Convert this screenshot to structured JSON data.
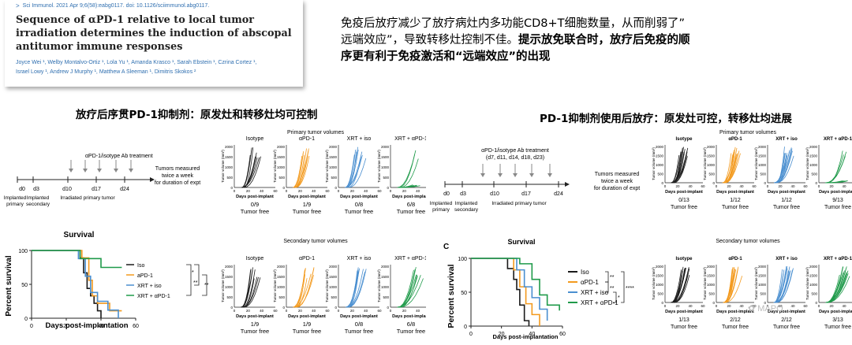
{
  "paper": {
    "journal": "Sci Immunol. 2021 Apr 9;6(58):eabg0117.  doi: 10.1126/sciimmunol.abg0117.",
    "title": "Sequence of αPD-1 relative to local tumor irradiation determines the induction of abscopal antitumor immune responses",
    "authors_line1": "Joyce Wei ¹, Welby Montalvo-Ortiz ¹, Lola Yu ¹, Amanda Krasco ¹, Sarah Ebstein ¹, Czrina Cortez ¹,",
    "authors_line2": "Israel Lowy ¹, Andrew J Murphy ¹, Matthew A Sleeman ¹, Dimitris Skokos ²"
  },
  "notes": {
    "line1": "免疫后放疗减少了放疗病灶内多功能CD8+T细胞数量，从而削弱了”",
    "line2_normal": "远端效应”，导致转移灶控制不佳。",
    "line2_bold": "提示放免联合时，放疗后免疫的顺",
    "line3_bold": "序更有利于免疫激活和“远端效应”的出现"
  },
  "left_section": {
    "heading": "放疗后序贯PD-1抑制剂：原发灶和转移灶均可控制",
    "timeline": {
      "ab_label": "αPD-1/isotype Ab treatment",
      "days": [
        "d0",
        "d3",
        "d10",
        "d17",
        "d24"
      ],
      "under_labels": [
        "Implanted primary",
        "Implanted secondary",
        "Irradiated primary tumor"
      ],
      "measure_note": [
        "Tumors measured",
        "twice a week",
        "for duration of expt"
      ]
    },
    "survival": {
      "title": "Survival",
      "ylabel": "Percent survival",
      "xlabel": "Days post-implantation",
      "legend": [
        "Iso",
        "aPD-1",
        "XRT + iso",
        "XRT + αPD-1"
      ],
      "sig": [
        "*",
        "**",
        "**"
      ]
    },
    "primary": {
      "title": "Primary tumor volumes",
      "panels": [
        "Isotype",
        "αPD-1",
        "XRT + iso",
        "XRT + αPD-1"
      ],
      "free": [
        "0/9",
        "1/9",
        "0/8",
        "6/8"
      ]
    },
    "secondary": {
      "title": "Secondary tumor volumes",
      "panels": [
        "Isotype",
        "αPD-1",
        "XRT + iso",
        "XRT + αPD-1"
      ],
      "free": [
        "1/9",
        "1/9",
        "0/8",
        "6/8"
      ]
    },
    "tumor_free": "Tumor free",
    "ylabel": "Tumor volume (mm³)",
    "xlabel": "Days post-implant"
  },
  "right_section": {
    "heading": "PD-1抑制剂使用后放疗：原发灶可控，转移灶均进展",
    "timeline": {
      "ab_label": [
        "αPD-1/isotype Ab treatment",
        "(d7, d11, d14, d18, d23)"
      ],
      "days": [
        "d0",
        "d3",
        "d10",
        "d17",
        "d24"
      ],
      "under_labels": [
        "Implanted primary",
        "Implanted secondary",
        "Irradiated primary tumor"
      ],
      "measure_note": [
        "Tumors measured",
        "twice a week",
        "for duration of expt"
      ]
    },
    "survival": {
      "panel_letter": "C",
      "title": "Survival",
      "ylabel": "Percent survival",
      "xlabel": "Days post-implantation",
      "legend": [
        "Iso",
        "αPD-1",
        "XRT + iso",
        "XRT + αPD-1"
      ],
      "sig": [
        "**",
        "**",
        "*",
        "****"
      ]
    },
    "primary": {
      "title": "Primary tumor volumes",
      "panels": [
        "Isotype",
        "αPD-1",
        "XRT + iso",
        "XRT + αPD-1"
      ],
      "free": [
        "0/13",
        "1/12",
        "1/12",
        "9/13"
      ]
    },
    "secondary": {
      "title": "Secondary tumor volumes",
      "panels": [
        "Isotype",
        "αPD-1",
        "XRT + iso",
        "XRT + αPD-1"
      ],
      "free": [
        "1/13",
        "2/12",
        "2/12",
        "3/13"
      ]
    },
    "tumor_free": "Tumor free",
    "ylabel": "Tumor volume (mm³)",
    "xlabel": "Days post-implant"
  },
  "colors": {
    "isotype": "#1a1a1a",
    "apd1": "#f39a1e",
    "xrt_iso": "#4a8fd0",
    "xrt_apd1": "#1f9a4a"
  },
  "chart_data": [
    {
      "type": "line",
      "title": "Survival",
      "xlabel": "Days post-implantation",
      "ylabel": "Percent survival",
      "xlim": [
        0,
        60
      ],
      "ylim": [
        0,
        100
      ],
      "x_ticks": [
        0,
        20,
        40,
        60
      ],
      "y_ticks": [
        0,
        50,
        100
      ],
      "series": [
        {
          "name": "Iso",
          "x": [
            0,
            25,
            28,
            30,
            32,
            34,
            36,
            38,
            40
          ],
          "y": [
            100,
            100,
            89,
            67,
            44,
            33,
            22,
            11,
            0
          ]
        },
        {
          "name": "aPD-1",
          "x": [
            0,
            26,
            29,
            33,
            35,
            38,
            45,
            52
          ],
          "y": [
            100,
            100,
            89,
            56,
            33,
            22,
            11,
            11
          ]
        },
        {
          "name": "XRT + iso",
          "x": [
            0,
            20,
            27,
            31,
            34,
            38,
            44,
            50
          ],
          "y": [
            100,
            100,
            88,
            62,
            38,
            25,
            12,
            0
          ]
        },
        {
          "name": "XRT + αPD-1",
          "x": [
            0,
            22,
            28,
            36,
            40,
            52
          ],
          "y": [
            100,
            100,
            88,
            88,
            75,
            75
          ]
        }
      ]
    },
    {
      "type": "line",
      "title": "Survival",
      "xlabel": "Days post-implantation",
      "ylabel": "Percent survival",
      "xlim": [
        0,
        60
      ],
      "ylim": [
        0,
        100
      ],
      "x_ticks": [
        0,
        20,
        40,
        60
      ],
      "y_ticks": [
        0,
        50,
        100
      ],
      "series": [
        {
          "name": "Iso",
          "x": [
            0,
            20,
            24,
            28,
            30,
            32,
            35,
            38
          ],
          "y": [
            100,
            100,
            85,
            69,
            54,
            31,
            8,
            0
          ]
        },
        {
          "name": "αPD-1",
          "x": [
            0,
            22,
            28,
            32,
            36,
            40,
            45
          ],
          "y": [
            100,
            100,
            83,
            58,
            33,
            17,
            0
          ]
        },
        {
          "name": "XRT + iso",
          "x": [
            0,
            25,
            30,
            35,
            40,
            45,
            50
          ],
          "y": [
            100,
            100,
            83,
            58,
            42,
            25,
            8
          ]
        },
        {
          "name": "XRT + αPD-1",
          "x": [
            0,
            28,
            32,
            40,
            45,
            50,
            58
          ],
          "y": [
            100,
            100,
            92,
            69,
            46,
            31,
            23
          ]
        }
      ]
    }
  ]
}
